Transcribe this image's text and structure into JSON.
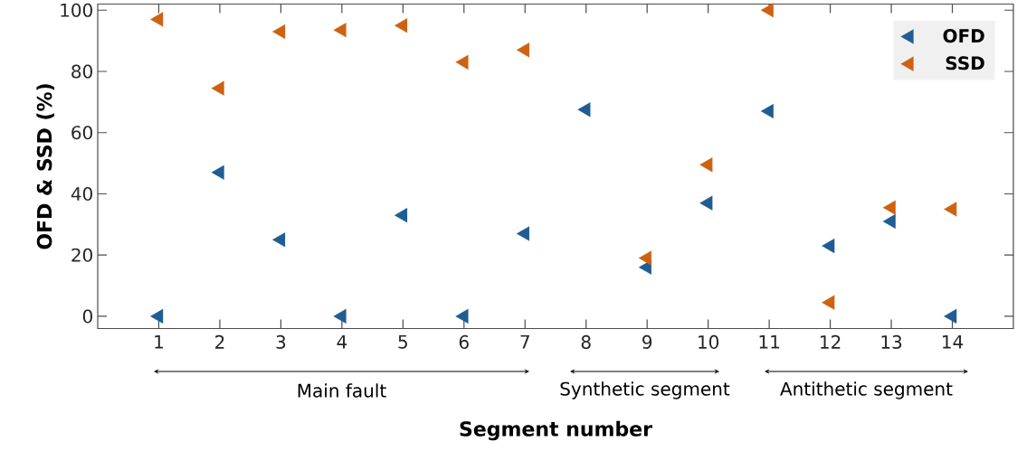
{
  "chart_data": {
    "type": "scatter",
    "xlabel": "Segment number",
    "ylabel": "OFD & SSD (%)",
    "x": [
      1,
      2,
      3,
      4,
      5,
      6,
      7,
      8,
      9,
      10,
      11,
      12,
      13,
      14
    ],
    "series": [
      {
        "name": "OFD",
        "color": "#1f5d94",
        "values": [
          0,
          47,
          25,
          0,
          33,
          0,
          27,
          67.5,
          16,
          37,
          67,
          23,
          31,
          0
        ]
      },
      {
        "name": "SSD",
        "color": "#cf6210",
        "values": [
          97,
          74.5,
          93,
          93.5,
          95,
          83,
          87,
          null,
          19,
          49.5,
          100,
          4.5,
          35.5,
          35
        ]
      }
    ],
    "xlim": [
      0,
      15
    ],
    "ylim": [
      -4,
      102
    ],
    "xticks": [
      1,
      2,
      3,
      4,
      5,
      6,
      7,
      8,
      9,
      10,
      11,
      12,
      13,
      14
    ],
    "yticks": [
      0,
      20,
      40,
      60,
      80,
      100
    ],
    "annotations": [
      "Main fault",
      "Synthetic segment",
      "Antithetic segment"
    ],
    "marker": "triangle",
    "legend": "top right",
    "grid": false
  }
}
